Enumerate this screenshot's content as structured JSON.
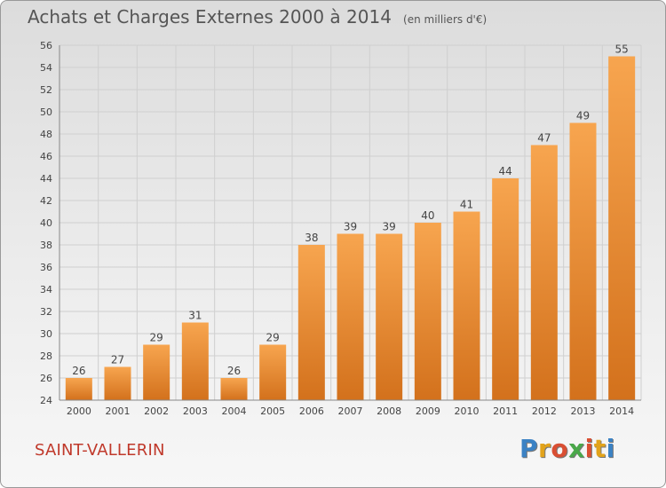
{
  "chart_data": {
    "type": "bar",
    "title": "Achats et Charges Externes 2000 à 2014",
    "subtitle": "(en milliers d'€)",
    "xlabel": "",
    "ylabel": "",
    "categories": [
      "2000",
      "2001",
      "2002",
      "2003",
      "2004",
      "2005",
      "2006",
      "2007",
      "2008",
      "2009",
      "2010",
      "2011",
      "2012",
      "2013",
      "2014"
    ],
    "values": [
      26,
      27,
      29,
      31,
      26,
      29,
      38,
      39,
      39,
      40,
      41,
      44,
      47,
      49,
      55
    ],
    "ylim": [
      24,
      56
    ],
    "yticks": [
      24,
      26,
      28,
      30,
      32,
      34,
      36,
      38,
      40,
      42,
      44,
      46,
      48,
      50,
      52,
      54,
      56
    ],
    "grid": true,
    "data_labels": true,
    "colors": {
      "bar_light": "#f7a54f",
      "bar_dark": "#d3711c",
      "grid": "#cfcfcf",
      "axis_text": "#444444"
    }
  },
  "footer": {
    "commune": "SAINT-VALLERIN",
    "logo_letters": [
      "P",
      "r",
      "o",
      "x",
      "i",
      "t",
      "i"
    ],
    "logo_colors": [
      "#3b82c4",
      "#e2a31b",
      "#d94f33",
      "#4aa84a",
      "#d94f33",
      "#e2a31b",
      "#3b82c4"
    ]
  }
}
